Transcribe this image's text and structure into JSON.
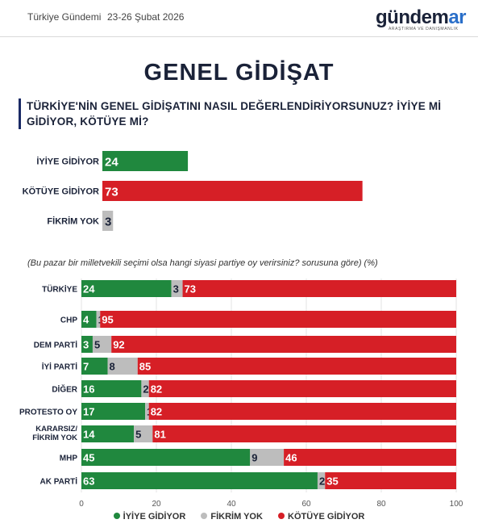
{
  "header": {
    "brand": "Türkiye Gündemi",
    "date": "23-26 Şubat 2026",
    "logo_main": "gündem",
    "logo_accent": "ar",
    "logo_sub": "ARAŞTIRMA VE DANIŞMANLIK"
  },
  "title": "GENEL GİDİŞAT",
  "question": "TÜRKİYE'NİN GENEL GİDİŞATINI NASIL DEĞERLENDİRİYORSUNUZ? İYİYE Mİ GİDİYOR, KÖTÜYE Mİ?",
  "note": "(Bu pazar bir milletvekili seçimi olsa hangi siyasi partiye oy verirsiniz? sorusuna göre) (%)",
  "colors": {
    "green": "#20883e",
    "gray": "#bdbdbd",
    "red": "#d61f26",
    "navy": "#1a2238",
    "accent_blue": "#2a6fc9"
  },
  "legend": [
    {
      "label": "İYİYE GİDİYOR",
      "color": "#20883e"
    },
    {
      "label": "FİKRİM YOK",
      "color": "#bdbdbd"
    },
    {
      "label": "KÖTÜYE GİDİYOR",
      "color": "#d61f26"
    }
  ],
  "chart_data": [
    {
      "type": "bar",
      "categories": [
        "İYİYE GİDİYOR",
        "KÖTÜYE GİDİYOR",
        "FİKRİM YOK"
      ],
      "values": [
        24,
        73,
        3
      ],
      "colors": [
        "#20883e",
        "#d61f26",
        "#bdbdbd"
      ]
    },
    {
      "type": "bar",
      "stacked": true,
      "orientation": "horizontal",
      "categories": [
        "TÜRKİYE",
        "CHP",
        "DEM PARTİ",
        "İYİ PARTİ",
        "DİĞER",
        "PROTESTO OY",
        "KARARSIZ/ FİKRİM YOK",
        "MHP",
        "AK PARTİ"
      ],
      "series": [
        {
          "name": "İYİYE GİDİYOR",
          "values": [
            24,
            4,
            3,
            7,
            16,
            17,
            14,
            45,
            63
          ]
        },
        {
          "name": "FİKRİM YOK",
          "values": [
            3,
            1,
            5,
            8,
            2,
            1,
            5,
            9,
            2
          ]
        },
        {
          "name": "KÖTÜYE GİDİYOR",
          "values": [
            73,
            95,
            92,
            85,
            82,
            82,
            81,
            46,
            35
          ]
        }
      ],
      "xlim": [
        0,
        100
      ],
      "xticks": [
        "0",
        "20",
        "40",
        "60",
        "80",
        "100"
      ],
      "grid": true,
      "legend_position": "bottom"
    }
  ]
}
